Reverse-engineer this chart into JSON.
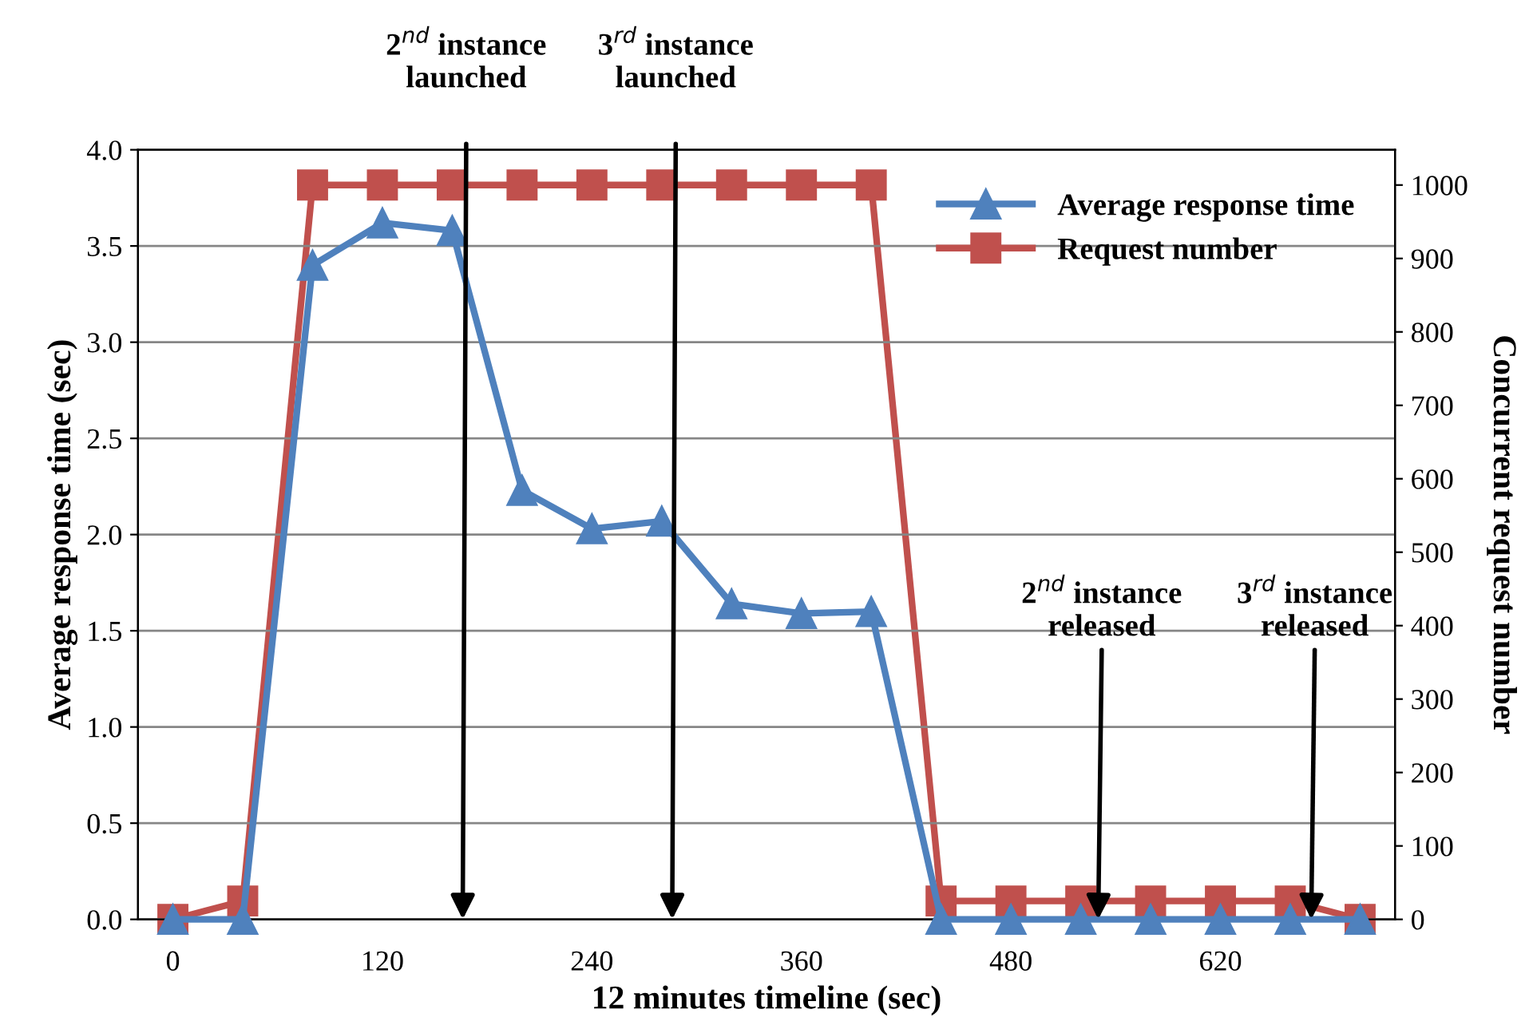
{
  "chart_data": {
    "type": "line",
    "xlabel": "12 minutes timeline (sec)",
    "ylabel": "Average response time (sec)",
    "y2label": "Concurrent request number",
    "categories": [
      "0",
      null,
      null,
      "120",
      null,
      null,
      "240",
      null,
      null,
      "360",
      null,
      null,
      "480",
      null,
      null,
      "620",
      null,
      null
    ],
    "series": [
      {
        "name": "Average response time",
        "color": "#4f81bd",
        "marker": "triangle",
        "values": [
          0,
          0,
          3.4,
          3.62,
          3.58,
          2.23,
          2.03,
          2.07,
          1.64,
          1.59,
          1.6,
          0,
          0,
          0,
          0,
          0,
          0,
          0
        ]
      },
      {
        "name": "Request number",
        "color": "#c0504d",
        "marker": "square",
        "axis": "y2",
        "values": [
          0,
          25,
          1000,
          1000,
          1000,
          1000,
          1000,
          1000,
          1000,
          1000,
          1000,
          25,
          25,
          25,
          25,
          25,
          25,
          0
        ]
      }
    ],
    "ylim": [
      0,
      4
    ],
    "yticks": [
      {
        "value": 0,
        "label": "0.0"
      },
      {
        "value": 0.5,
        "label": "0.5"
      },
      {
        "value": 1,
        "label": "1.0"
      },
      {
        "value": 1.5,
        "label": "1.5"
      },
      {
        "value": 2,
        "label": "2.0"
      },
      {
        "value": 2.5,
        "label": "2.5"
      },
      {
        "value": 3,
        "label": "3.0"
      },
      {
        "value": 3.5,
        "label": "3.5"
      },
      {
        "value": 4,
        "label": "4.0"
      }
    ],
    "y2lim": [
      0,
      1048
    ],
    "y2ticks": [
      0,
      100,
      200,
      300,
      400,
      500,
      600,
      700,
      800,
      900,
      1000
    ],
    "grid": "y",
    "legend": "top right",
    "line_style": "solid",
    "annotations": [
      "2$^{nd}$ instance\nlaunched",
      "3$^{rd}$ instance\nlaunched",
      {
        "text": "2$^{nd}$ instance\nreleased",
        "y": 0
      },
      {
        "text": "3$^{rd}$ instance\nreleased",
        "y": 0
      }
    ]
  }
}
